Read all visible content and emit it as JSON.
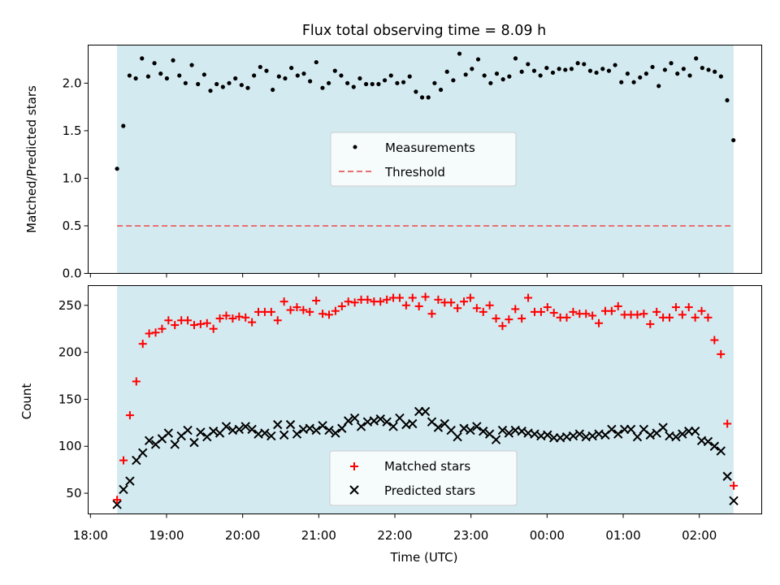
{
  "chart_data": [
    {
      "type": "scatter",
      "title": "Flux total observing time = 8.09 h",
      "xlabel": "",
      "ylabel": "Matched/Predicted stars",
      "ylim": [
        0,
        2.4
      ],
      "yticks": [
        0.0,
        0.5,
        1.0,
        1.5,
        2.0
      ],
      "ytick_labels": [
        "0.0",
        "0.5",
        "1.0",
        "1.5",
        "2.0"
      ],
      "xlim_hours": [
        17.97,
        26.82
      ],
      "observing_window_hours": [
        18.35,
        26.45
      ],
      "shaded_color": "#d3eaf0",
      "legend": {
        "placement": "center",
        "entries": [
          {
            "label": "Measurements"
          },
          {
            "label": "Threshold"
          }
        ]
      },
      "threshold": {
        "value": 0.5,
        "color": "#e87070",
        "x_range_hours": [
          18.35,
          26.45
        ]
      },
      "series": [
        {
          "name": "Measurements",
          "marker": "dot",
          "color": "#000000",
          "values": [
            1.1,
            1.55,
            2.08,
            2.05,
            2.26,
            2.07,
            2.21,
            2.1,
            2.05,
            2.24,
            2.08,
            2.0,
            2.19,
            1.99,
            2.09,
            1.92,
            1.99,
            1.96,
            2.0,
            2.05,
            1.98,
            1.95,
            2.08,
            2.17,
            2.13,
            1.93,
            2.07,
            2.05,
            2.16,
            2.08,
            2.1,
            2.02,
            2.22,
            1.95,
            2.0,
            2.13,
            2.08,
            2.0,
            1.96,
            2.05,
            1.99,
            1.99,
            1.99,
            2.03,
            2.08,
            2.0,
            2.01,
            2.07,
            1.91,
            1.85,
            1.85,
            2.0,
            1.93,
            2.12,
            2.03,
            2.31,
            2.09,
            2.15,
            2.25,
            2.08,
            2.0,
            2.1,
            2.04,
            2.07,
            2.26,
            2.12,
            2.2,
            2.13,
            2.08,
            2.16,
            2.11,
            2.15,
            2.14,
            2.15,
            2.21,
            2.2,
            2.13,
            2.11,
            2.15,
            2.13,
            2.19,
            2.01,
            2.1,
            2.01,
            2.06,
            2.1,
            2.17,
            1.97,
            2.14,
            2.21,
            2.1,
            2.15,
            2.08,
            2.26,
            2.16,
            2.14,
            2.12,
            2.07,
            1.82,
            1.4
          ],
          "x_start_hours": 18.35,
          "x_step_hours": 0.0818
        }
      ]
    },
    {
      "type": "scatter",
      "title": "",
      "xlabel": "Time (UTC)",
      "ylabel": "Count",
      "ylim": [
        28,
        271
      ],
      "yticks": [
        50,
        100,
        150,
        200,
        250
      ],
      "ytick_labels": [
        "50",
        "100",
        "150",
        "200",
        "250"
      ],
      "xlim_hours": [
        17.97,
        26.82
      ],
      "xticks_hours": [
        18,
        19,
        20,
        21,
        22,
        23,
        24,
        25,
        26
      ],
      "xtick_labels": [
        "18:00",
        "19:00",
        "20:00",
        "21:00",
        "22:00",
        "23:00",
        "00:00",
        "01:00",
        "02:00"
      ],
      "observing_window_hours": [
        18.35,
        26.45
      ],
      "shaded_color": "#d3eaf0",
      "legend": {
        "placement": "bottom-center",
        "entries": [
          {
            "label": "Matched stars"
          },
          {
            "label": "Predicted stars"
          }
        ]
      },
      "series": [
        {
          "name": "Matched stars",
          "marker": "plus",
          "color": "#ff0000",
          "values": [
            43,
            85,
            133,
            169,
            209,
            220,
            221,
            225,
            234,
            229,
            234,
            234,
            229,
            230,
            231,
            225,
            236,
            239,
            236,
            238,
            237,
            232,
            243,
            243,
            243,
            234,
            254,
            245,
            248,
            245,
            243,
            255,
            241,
            240,
            244,
            249,
            254,
            253,
            256,
            256,
            254,
            254,
            256,
            258,
            258,
            250,
            258,
            249,
            259,
            241,
            256,
            253,
            253,
            247,
            254,
            258,
            247,
            243,
            250,
            236,
            228,
            235,
            246,
            236,
            258,
            243,
            243,
            248,
            242,
            237,
            237,
            243,
            241,
            241,
            239,
            231,
            244,
            244,
            249,
            240,
            240,
            240,
            241,
            230,
            243,
            237,
            237,
            248,
            240,
            248,
            237,
            244,
            237,
            213,
            198,
            124,
            58
          ],
          "x_start_hours": 18.35,
          "x_step_hours": 0.0844
        },
        {
          "name": "Predicted stars",
          "marker": "cross",
          "color": "#000000",
          "values": [
            38,
            54,
            63,
            85,
            93,
            106,
            102,
            108,
            114,
            102,
            111,
            117,
            104,
            115,
            110,
            116,
            114,
            121,
            117,
            118,
            121,
            118,
            113,
            114,
            111,
            123,
            112,
            123,
            113,
            118,
            119,
            117,
            122,
            117,
            114,
            119,
            127,
            130,
            121,
            126,
            127,
            129,
            126,
            121,
            130,
            123,
            124,
            137,
            137,
            126,
            120,
            124,
            117,
            110,
            119,
            117,
            121,
            116,
            113,
            107,
            117,
            114,
            117,
            116,
            114,
            113,
            111,
            112,
            109,
            109,
            110,
            111,
            113,
            110,
            111,
            113,
            112,
            118,
            113,
            118,
            118,
            110,
            118,
            112,
            114,
            120,
            111,
            110,
            113,
            116,
            116,
            106,
            105,
            100,
            95,
            68,
            42
          ],
          "x_start_hours": 18.35,
          "x_step_hours": 0.0844
        }
      ]
    }
  ]
}
